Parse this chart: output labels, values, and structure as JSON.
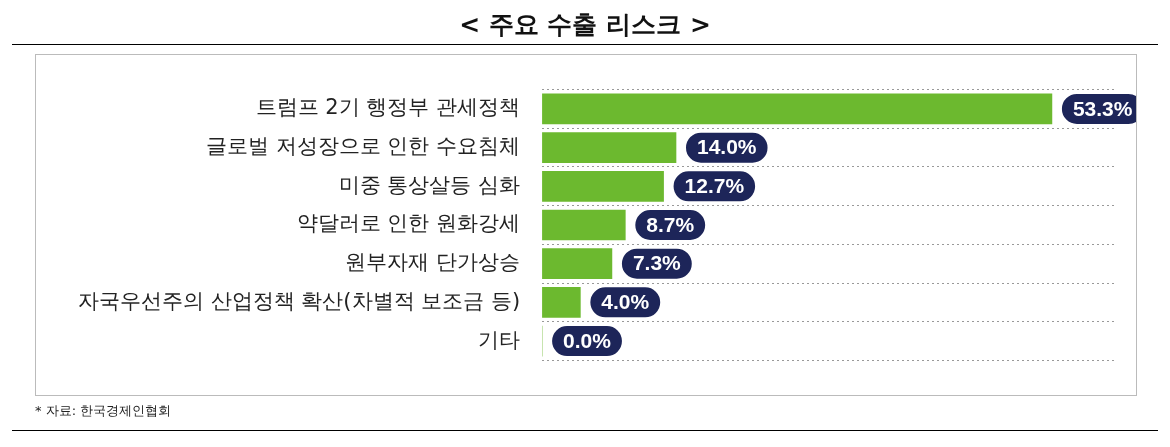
{
  "chart_data": {
    "type": "bar",
    "orientation": "horizontal",
    "title": "< 주요 수출 리스크 >",
    "categories": [
      "트럼프 2기 행정부 관세정책",
      "글로벌 저성장으로 인한 수요침체",
      "미중 통상살등 심화",
      "약달러로 인한 원화강세",
      "원부자재 단가상승",
      "자국우선주의 산업정책 확산(차별적 보조금 등)",
      "기타"
    ],
    "values": [
      53.3,
      14.0,
      12.7,
      8.7,
      7.3,
      4.0,
      0.0
    ],
    "value_labels": [
      "53.3%",
      "14.0%",
      "12.7%",
      "8.7%",
      "7.3%",
      "4.0%",
      "0.0%"
    ],
    "color": "#6cb92f",
    "xlim": [
      0,
      60
    ],
    "grid": "y",
    "legend": false,
    "annotations": [
      "* 자료: 한국경제인협회"
    ]
  }
}
